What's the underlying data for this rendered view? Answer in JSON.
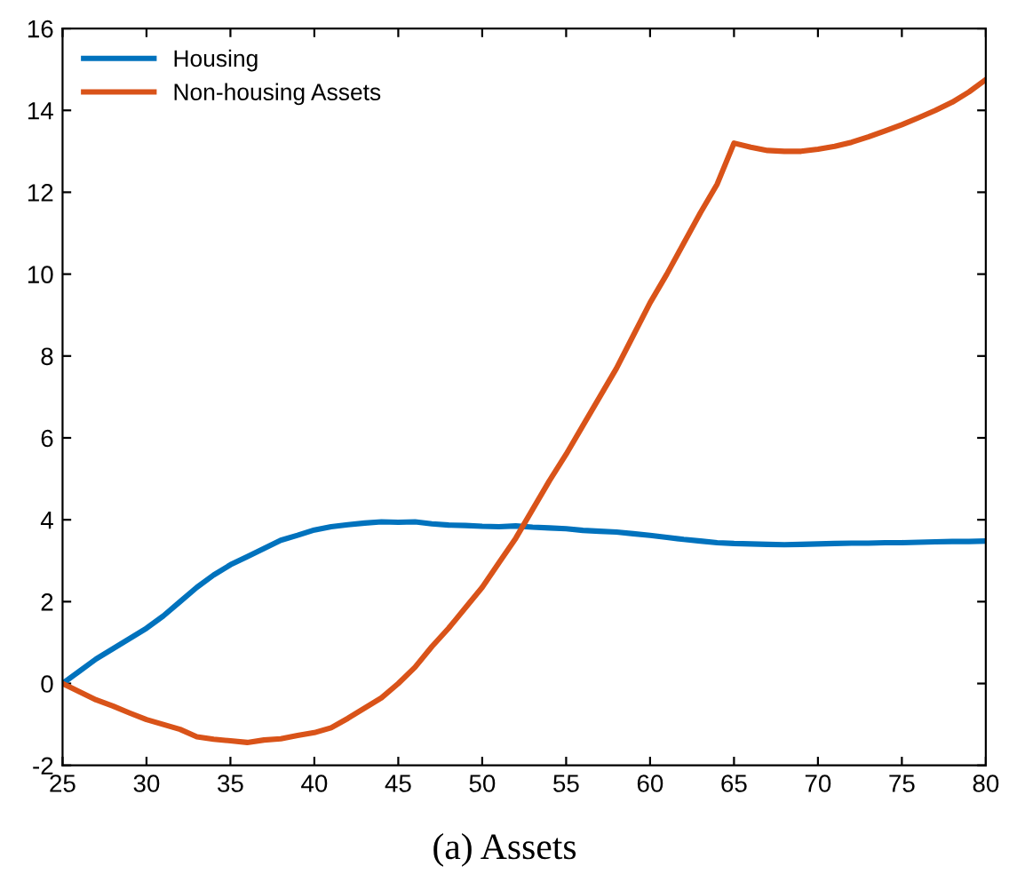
{
  "chart_data": {
    "type": "line",
    "x": [
      25,
      26,
      27,
      28,
      29,
      30,
      31,
      32,
      33,
      34,
      35,
      36,
      37,
      38,
      39,
      40,
      41,
      42,
      43,
      44,
      45,
      46,
      47,
      48,
      49,
      50,
      51,
      52,
      53,
      54,
      55,
      56,
      57,
      58,
      59,
      60,
      61,
      62,
      63,
      64,
      65,
      66,
      67,
      68,
      69,
      70,
      71,
      72,
      73,
      74,
      75,
      76,
      77,
      78,
      79,
      80
    ],
    "series": [
      {
        "name": "Housing",
        "color": "#0072bd",
        "values": [
          0,
          0.3,
          0.6,
          0.85,
          1.1,
          1.35,
          1.65,
          2.0,
          2.35,
          2.65,
          2.9,
          3.1,
          3.3,
          3.5,
          3.62,
          3.75,
          3.83,
          3.88,
          3.92,
          3.95,
          3.94,
          3.95,
          3.9,
          3.87,
          3.86,
          3.84,
          3.83,
          3.85,
          3.82,
          3.8,
          3.78,
          3.74,
          3.72,
          3.7,
          3.66,
          3.62,
          3.57,
          3.52,
          3.48,
          3.44,
          3.42,
          3.41,
          3.4,
          3.39,
          3.4,
          3.41,
          3.42,
          3.43,
          3.43,
          3.44,
          3.44,
          3.45,
          3.46,
          3.47,
          3.47,
          3.48
        ]
      },
      {
        "name": "Non-housing Assets",
        "color": "#d95319",
        "values": [
          0,
          -0.2,
          -0.4,
          -0.55,
          -0.72,
          -0.88,
          -1.0,
          -1.12,
          -1.3,
          -1.36,
          -1.4,
          -1.44,
          -1.38,
          -1.35,
          -1.27,
          -1.2,
          -1.08,
          -0.85,
          -0.6,
          -0.35,
          0.0,
          0.4,
          0.9,
          1.35,
          1.85,
          2.35,
          2.95,
          3.55,
          4.25,
          4.95,
          5.6,
          6.3,
          7.0,
          7.7,
          8.5,
          9.3,
          10.0,
          10.75,
          11.5,
          12.2,
          13.2,
          13.1,
          13.02,
          13.0,
          13.0,
          13.05,
          13.12,
          13.22,
          13.35,
          13.5,
          13.65,
          13.82,
          14.0,
          14.2,
          14.45,
          14.75
        ]
      }
    ],
    "xlim": [
      25,
      80
    ],
    "xticks": [
      25,
      30,
      35,
      40,
      45,
      50,
      55,
      60,
      65,
      70,
      75,
      80
    ],
    "ylim": [
      -2,
      16
    ],
    "yticks": [
      -2,
      0,
      2,
      4,
      6,
      8,
      10,
      12,
      14,
      16
    ],
    "legend": "top left",
    "grid": false,
    "annotations": [
      "(a) Assets"
    ]
  }
}
